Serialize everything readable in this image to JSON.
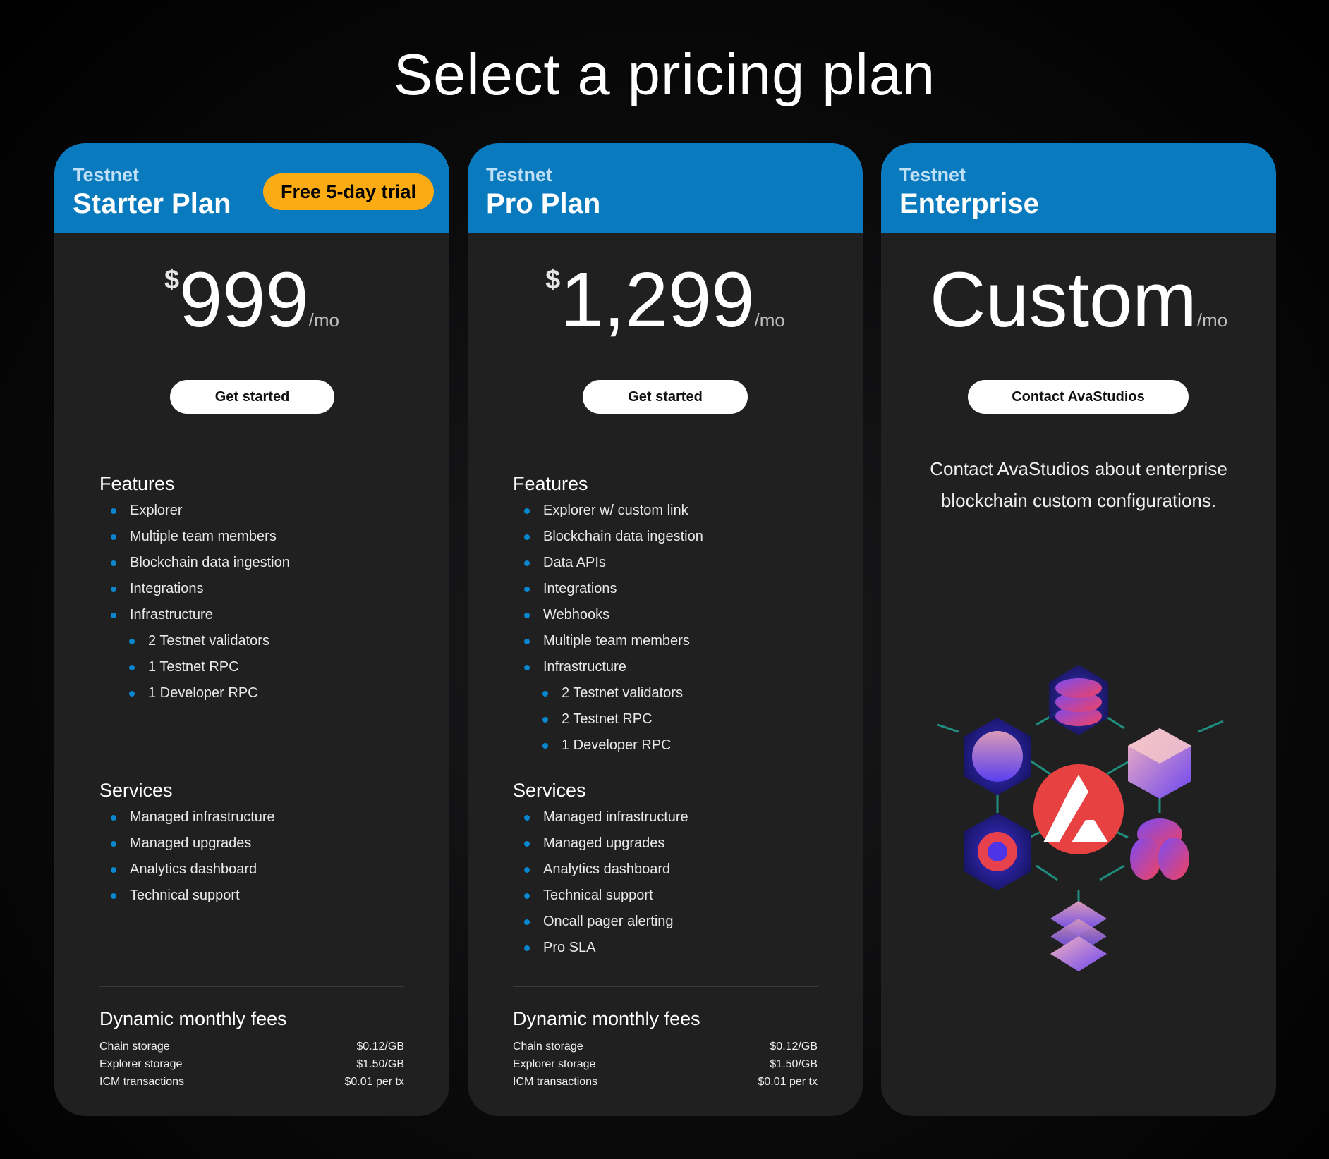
{
  "page": {
    "title": "Select a pricing plan"
  },
  "plans": [
    {
      "kicker": "Testnet",
      "name": "Starter Plan",
      "badge": "Free 5-day trial",
      "currency": "$",
      "price": "999",
      "period": "/mo",
      "cta": "Get started",
      "features_title": "Features",
      "features": [
        {
          "label": "Explorer",
          "level": 0
        },
        {
          "label": "Multiple team members",
          "level": 0
        },
        {
          "label": "Blockchain data ingestion",
          "level": 0
        },
        {
          "label": "Integrations",
          "level": 0
        },
        {
          "label": "Infrastructure",
          "level": 0
        },
        {
          "label": "2 Testnet validators",
          "level": 1
        },
        {
          "label": "1 Testnet RPC",
          "level": 1
        },
        {
          "label": "1 Developer RPC",
          "level": 1
        }
      ],
      "services_title": "Services",
      "services": [
        "Managed infrastructure",
        "Managed upgrades",
        "Analytics dashboard",
        "Technical support"
      ],
      "fees_title": "Dynamic monthly fees",
      "fees": [
        {
          "label": "Chain storage",
          "value": "$0.12/GB"
        },
        {
          "label": "Explorer storage",
          "value": "$1.50/GB"
        },
        {
          "label": "ICM transactions",
          "value": "$0.01 per tx"
        }
      ]
    },
    {
      "kicker": "Testnet",
      "name": "Pro Plan",
      "currency": "$",
      "price": "1,299",
      "period": "/mo",
      "cta": "Get started",
      "features_title": "Features",
      "features": [
        {
          "label": "Explorer w/ custom link",
          "level": 0
        },
        {
          "label": "Blockchain data ingestion",
          "level": 0
        },
        {
          "label": "Data APIs",
          "level": 0
        },
        {
          "label": "Integrations",
          "level": 0
        },
        {
          "label": "Webhooks",
          "level": 0
        },
        {
          "label": "Multiple team members",
          "level": 0
        },
        {
          "label": "Infrastructure",
          "level": 0
        },
        {
          "label": "2 Testnet validators",
          "level": 1
        },
        {
          "label": "2 Testnet RPC",
          "level": 1
        },
        {
          "label": "1 Developer RPC",
          "level": 1
        }
      ],
      "services_title": "Services",
      "services": [
        "Managed infrastructure",
        "Managed upgrades",
        "Analytics dashboard",
        "Technical support",
        "Oncall pager alerting",
        "Pro SLA"
      ],
      "fees_title": "Dynamic monthly fees",
      "fees": [
        {
          "label": "Chain storage",
          "value": "$0.12/GB"
        },
        {
          "label": "Explorer storage",
          "value": "$1.50/GB"
        },
        {
          "label": "ICM transactions",
          "value": "$0.01 per tx"
        }
      ]
    },
    {
      "kicker": "Testnet",
      "name": "Enterprise",
      "price": "Custom",
      "period": "/mo",
      "cta": "Contact AvaStudios",
      "description": "Contact AvaStudios about enterprise blockchain custom configurations."
    }
  ],
  "colors": {
    "header_blue": "#0a7abf",
    "badge_orange": "#fbab14",
    "bullet_blue": "#0a86cf",
    "brand_red": "#e84142"
  },
  "icons": {
    "illustration": "avalanche-network-illustration",
    "center_logo": "avalanche-logo-icon"
  }
}
